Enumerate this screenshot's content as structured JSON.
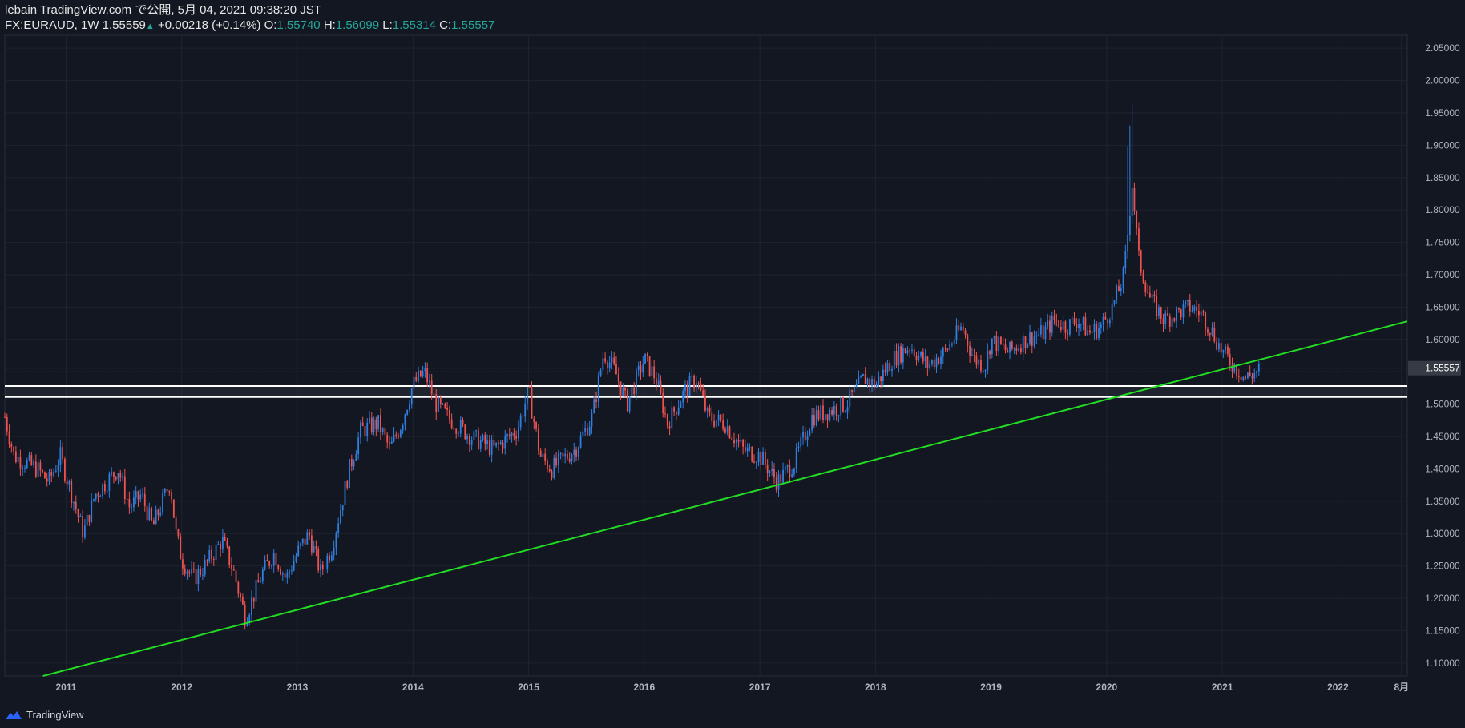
{
  "header": {
    "line1": "lebain TradingView.com で公開, 5月 04, 2021 09:38:20 JST",
    "symbol": "FX:EURAUD, 1W 1.55559",
    "change": "+0.00218 (+0.14%)",
    "o_label": "O:",
    "o_value": "1.55740",
    "h_label": "H:",
    "h_value": "1.56099",
    "l_label": "L:",
    "l_value": "1.55314",
    "c_label": "C:",
    "c_value": "1.55557"
  },
  "footer": {
    "brand": "TradingView",
    "logo_icon": "tradingview-logo-icon"
  },
  "colors": {
    "background": "#131722",
    "grid": "#1f2330",
    "up": "#2f7fe0",
    "down": "#ef5350",
    "trendline": "#22dd22",
    "zone": "#ffffff",
    "axis_text": "#b2b5be",
    "price_badge": "#363a45",
    "positive": "#26a69a"
  },
  "chart_data": {
    "type": "candlestick",
    "symbol": "FX:EURAUD",
    "interval": "1W",
    "last_price": "1.55557",
    "ylim": [
      1.08,
      2.07
    ],
    "y_ticks": [
      "1.10000",
      "1.15000",
      "1.20000",
      "1.25000",
      "1.30000",
      "1.35000",
      "1.40000",
      "1.45000",
      "1.50000",
      "1.55000",
      "1.60000",
      "1.65000",
      "1.70000",
      "1.75000",
      "1.80000",
      "1.85000",
      "1.90000",
      "1.95000",
      "2.00000",
      "2.05000"
    ],
    "x_ticks": [
      "2011",
      "2012",
      "2013",
      "2014",
      "2015",
      "2016",
      "2017",
      "2018",
      "2019",
      "2020",
      "2021",
      "2022",
      "8月"
    ],
    "x_tick_dates": [
      2011.0,
      2012.0,
      2013.0,
      2014.0,
      2015.0,
      2016.0,
      2017.0,
      2018.0,
      2019.0,
      2020.0,
      2021.0,
      2022.0,
      2022.55
    ],
    "xlim": [
      2010.47,
      2022.6
    ],
    "price_path": [
      [
        2010.47,
        1.48
      ],
      [
        2010.55,
        1.42
      ],
      [
        2010.75,
        1.4
      ],
      [
        2010.85,
        1.38
      ],
      [
        2010.95,
        1.42
      ],
      [
        2011.05,
        1.36
      ],
      [
        2011.15,
        1.3
      ],
      [
        2011.25,
        1.36
      ],
      [
        2011.45,
        1.4
      ],
      [
        2011.55,
        1.34
      ],
      [
        2011.65,
        1.36
      ],
      [
        2011.75,
        1.31
      ],
      [
        2011.9,
        1.38
      ],
      [
        2011.95,
        1.3
      ],
      [
        2012.0,
        1.26
      ],
      [
        2012.1,
        1.23
      ],
      [
        2012.2,
        1.25
      ],
      [
        2012.35,
        1.29
      ],
      [
        2012.45,
        1.24
      ],
      [
        2012.55,
        1.17
      ],
      [
        2012.7,
        1.24
      ],
      [
        2012.8,
        1.27
      ],
      [
        2012.9,
        1.23
      ],
      [
        2013.0,
        1.27
      ],
      [
        2013.1,
        1.3
      ],
      [
        2013.2,
        1.24
      ],
      [
        2013.3,
        1.28
      ],
      [
        2013.45,
        1.4
      ],
      [
        2013.55,
        1.46
      ],
      [
        2013.7,
        1.47
      ],
      [
        2013.8,
        1.43
      ],
      [
        2013.9,
        1.47
      ],
      [
        2014.0,
        1.53
      ],
      [
        2014.1,
        1.55
      ],
      [
        2014.2,
        1.5
      ],
      [
        2014.3,
        1.48
      ],
      [
        2014.5,
        1.45
      ],
      [
        2014.7,
        1.43
      ],
      [
        2014.9,
        1.46
      ],
      [
        2015.0,
        1.52
      ],
      [
        2015.1,
        1.42
      ],
      [
        2015.2,
        1.4
      ],
      [
        2015.4,
        1.43
      ],
      [
        2015.55,
        1.48
      ],
      [
        2015.65,
        1.58
      ],
      [
        2015.75,
        1.55
      ],
      [
        2015.85,
        1.5
      ],
      [
        2016.0,
        1.57
      ],
      [
        2016.1,
        1.54
      ],
      [
        2016.2,
        1.47
      ],
      [
        2016.35,
        1.52
      ],
      [
        2016.45,
        1.54
      ],
      [
        2016.55,
        1.48
      ],
      [
        2016.7,
        1.47
      ],
      [
        2016.85,
        1.43
      ],
      [
        2017.0,
        1.42
      ],
      [
        2017.15,
        1.38
      ],
      [
        2017.3,
        1.41
      ],
      [
        2017.45,
        1.48
      ],
      [
        2017.6,
        1.49
      ],
      [
        2017.75,
        1.5
      ],
      [
        2017.9,
        1.54
      ],
      [
        2018.0,
        1.53
      ],
      [
        2018.15,
        1.57
      ],
      [
        2018.3,
        1.59
      ],
      [
        2018.45,
        1.56
      ],
      [
        2018.6,
        1.58
      ],
      [
        2018.75,
        1.62
      ],
      [
        2018.85,
        1.57
      ],
      [
        2018.95,
        1.56
      ],
      [
        2019.0,
        1.6
      ],
      [
        2019.15,
        1.58
      ],
      [
        2019.3,
        1.6
      ],
      [
        2019.45,
        1.61
      ],
      [
        2019.55,
        1.63
      ],
      [
        2019.65,
        1.62
      ],
      [
        2019.75,
        1.63
      ],
      [
        2019.85,
        1.61
      ],
      [
        2019.95,
        1.62
      ],
      [
        2020.05,
        1.65
      ],
      [
        2020.15,
        1.7
      ],
      [
        2020.22,
        1.84
      ],
      [
        2020.28,
        1.72
      ],
      [
        2020.38,
        1.66
      ],
      [
        2020.5,
        1.63
      ],
      [
        2020.6,
        1.64
      ],
      [
        2020.72,
        1.65
      ],
      [
        2020.82,
        1.64
      ],
      [
        2020.92,
        1.61
      ],
      [
        2021.0,
        1.58
      ],
      [
        2021.1,
        1.56
      ],
      [
        2021.2,
        1.54
      ],
      [
        2021.3,
        1.55
      ],
      [
        2021.34,
        1.5556
      ]
    ],
    "trendline": {
      "start": [
        2010.8,
        1.08
      ],
      "end": [
        2022.6,
        1.628
      ],
      "color": "#22dd22"
    },
    "horizontal_zone": {
      "upper": 1.528,
      "lower": 1.511,
      "color": "#ffffff"
    },
    "grid": true
  }
}
